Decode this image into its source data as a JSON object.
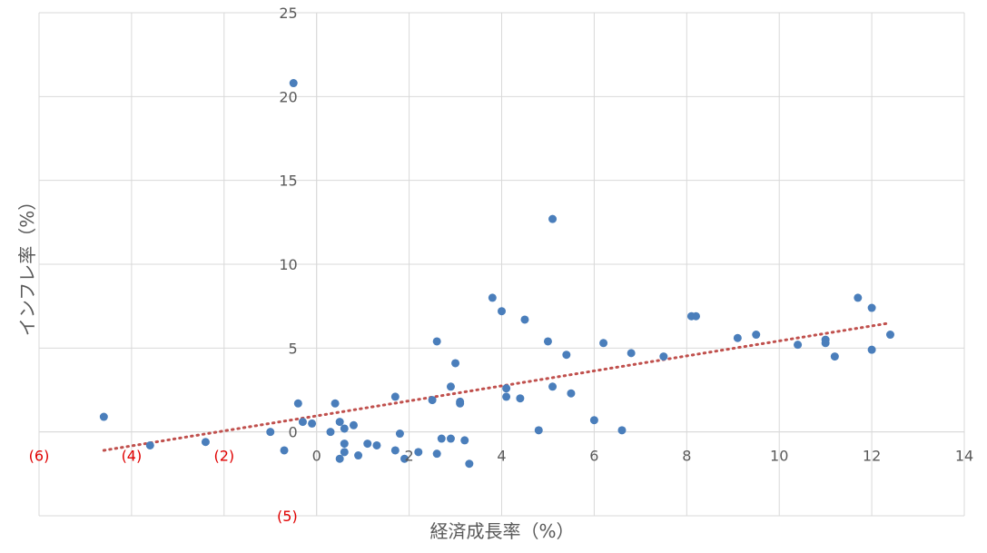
{
  "chart_data": {
    "type": "scatter",
    "title": "",
    "xlabel": "経済成長率（%）",
    "ylabel": "インフレ率（%）",
    "xlim": [
      -6,
      14
    ],
    "ylim": [
      -5,
      25
    ],
    "grid": true,
    "x_ticks": [
      {
        "value": -6,
        "label": "(6)"
      },
      {
        "value": -4,
        "label": "(4)"
      },
      {
        "value": -2,
        "label": "(2)"
      },
      {
        "value": 0,
        "label": "0"
      },
      {
        "value": 2,
        "label": "2"
      },
      {
        "value": 4,
        "label": "4"
      },
      {
        "value": 6,
        "label": "6"
      },
      {
        "value": 8,
        "label": "8"
      },
      {
        "value": 10,
        "label": "10"
      },
      {
        "value": 12,
        "label": "12"
      },
      {
        "value": 14,
        "label": "14"
      }
    ],
    "y_ticks": [
      {
        "value": 25,
        "label": "25"
      },
      {
        "value": 20,
        "label": "20"
      },
      {
        "value": 15,
        "label": "15"
      },
      {
        "value": 10,
        "label": "10"
      },
      {
        "value": 5,
        "label": "5"
      },
      {
        "value": 0,
        "label": "0"
      },
      {
        "value": -5,
        "label": "(5)"
      }
    ],
    "negative_label_color": "#e00000",
    "point_color": "#4a7ebb",
    "trendline_color": "#c0504d",
    "series": [
      {
        "points": [
          [
            -4.6,
            0.9
          ],
          [
            -3.6,
            -0.8
          ],
          [
            -2.4,
            -0.6
          ],
          [
            -1.0,
            0.0
          ],
          [
            -0.7,
            -1.1
          ],
          [
            -0.5,
            20.8
          ],
          [
            -0.4,
            1.7
          ],
          [
            -0.3,
            0.6
          ],
          [
            -0.1,
            0.5
          ],
          [
            0.3,
            0.0
          ],
          [
            0.4,
            1.7
          ],
          [
            0.5,
            0.6
          ],
          [
            0.5,
            -1.6
          ],
          [
            0.6,
            0.2
          ],
          [
            0.6,
            -0.7
          ],
          [
            0.6,
            -1.2
          ],
          [
            0.8,
            0.4
          ],
          [
            0.9,
            -1.4
          ],
          [
            1.1,
            -0.7
          ],
          [
            1.3,
            -0.8
          ],
          [
            1.7,
            2.1
          ],
          [
            1.7,
            -1.1
          ],
          [
            1.8,
            -0.1
          ],
          [
            1.9,
            -1.6
          ],
          [
            2.2,
            -1.2
          ],
          [
            2.5,
            1.9
          ],
          [
            2.6,
            5.4
          ],
          [
            2.6,
            -1.3
          ],
          [
            2.7,
            -0.4
          ],
          [
            2.9,
            2.7
          ],
          [
            2.9,
            -0.4
          ],
          [
            3.0,
            4.1
          ],
          [
            3.1,
            1.8
          ],
          [
            3.1,
            1.7
          ],
          [
            3.2,
            -0.5
          ],
          [
            3.3,
            -1.9
          ],
          [
            3.8,
            8.0
          ],
          [
            4.0,
            7.2
          ],
          [
            4.1,
            2.6
          ],
          [
            4.1,
            2.1
          ],
          [
            4.4,
            2.0
          ],
          [
            4.5,
            6.7
          ],
          [
            4.8,
            0.1
          ],
          [
            5.0,
            5.4
          ],
          [
            5.1,
            12.7
          ],
          [
            5.1,
            2.7
          ],
          [
            5.4,
            4.6
          ],
          [
            5.5,
            2.3
          ],
          [
            6.0,
            0.7
          ],
          [
            6.2,
            5.3
          ],
          [
            6.6,
            0.1
          ],
          [
            6.8,
            4.7
          ],
          [
            7.5,
            4.5
          ],
          [
            8.1,
            6.9
          ],
          [
            8.2,
            6.9
          ],
          [
            9.1,
            5.6
          ],
          [
            9.5,
            5.8
          ],
          [
            10.4,
            5.2
          ],
          [
            11.0,
            5.5
          ],
          [
            11.0,
            5.3
          ],
          [
            11.2,
            4.5
          ],
          [
            11.7,
            8.0
          ],
          [
            12.0,
            7.4
          ],
          [
            12.0,
            4.9
          ],
          [
            12.4,
            5.8
          ]
        ]
      }
    ],
    "trendline": {
      "type": "linear",
      "x_from": -4.6,
      "x_to": 12.4,
      "y_from": -1.1,
      "y_to": 6.5
    }
  }
}
